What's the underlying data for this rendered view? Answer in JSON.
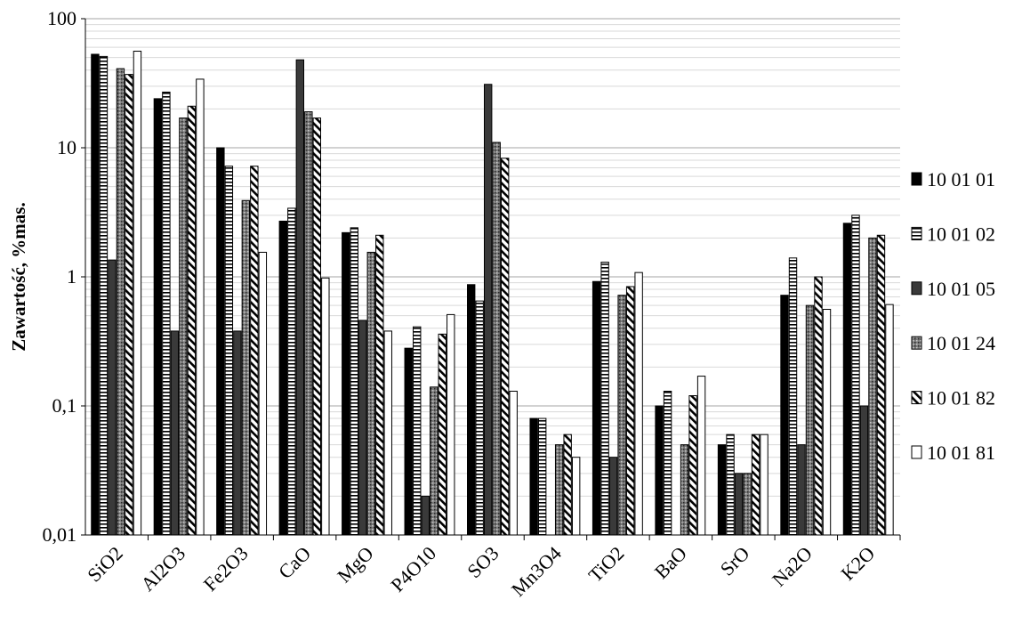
{
  "chart_data": {
    "type": "bar",
    "title": "",
    "xlabel": "",
    "ylabel": "Zawartość, %mas.",
    "yscale": "log",
    "ylim": [
      0.01,
      100
    ],
    "y_ticks": [
      "0,01",
      "0,1",
      "1",
      "10",
      "100"
    ],
    "grid": "horizontal minor and major",
    "legend_position": "right",
    "categories": [
      "SiO2",
      "Al2O3",
      "Fe2O3",
      "CaO",
      "MgO",
      "P4O10",
      "SO3",
      "Mn3O4",
      "TiO2",
      "BaO",
      "SrO",
      "Na2O",
      "K2O"
    ],
    "series": [
      {
        "name": "10 01 01",
        "pattern": "solid-black",
        "values": [
          53,
          24,
          10,
          2.7,
          2.2,
          0.28,
          0.87,
          0.08,
          0.92,
          0.1,
          0.05,
          0.72,
          2.6
        ]
      },
      {
        "name": "10 01 02",
        "pattern": "horizontal-stripes",
        "values": [
          51,
          27,
          7.2,
          3.4,
          2.4,
          0.41,
          0.65,
          0.08,
          1.3,
          0.13,
          0.06,
          1.4,
          3.0
        ]
      },
      {
        "name": "10 01 05",
        "pattern": "solid-darkgray",
        "values": [
          1.35,
          0.38,
          0.38,
          48,
          0.46,
          0.02,
          31,
          null,
          0.04,
          null,
          0.03,
          0.05,
          0.1
        ]
      },
      {
        "name": "10 01 24",
        "pattern": "dotted-gray",
        "values": [
          41,
          17,
          3.9,
          19,
          1.55,
          0.14,
          11,
          0.05,
          0.72,
          0.05,
          0.03,
          0.6,
          2.0
        ]
      },
      {
        "name": "10 01 82",
        "pattern": "diagonal-stripes",
        "values": [
          37,
          21,
          7.2,
          17,
          2.1,
          0.36,
          8.3,
          0.06,
          0.84,
          0.12,
          0.06,
          1.0,
          2.1
        ]
      },
      {
        "name": "10 01 81",
        "pattern": "white",
        "values": [
          56,
          34,
          1.55,
          0.98,
          0.38,
          0.51,
          0.13,
          0.04,
          1.08,
          0.17,
          0.06,
          0.56,
          0.61
        ]
      }
    ]
  }
}
